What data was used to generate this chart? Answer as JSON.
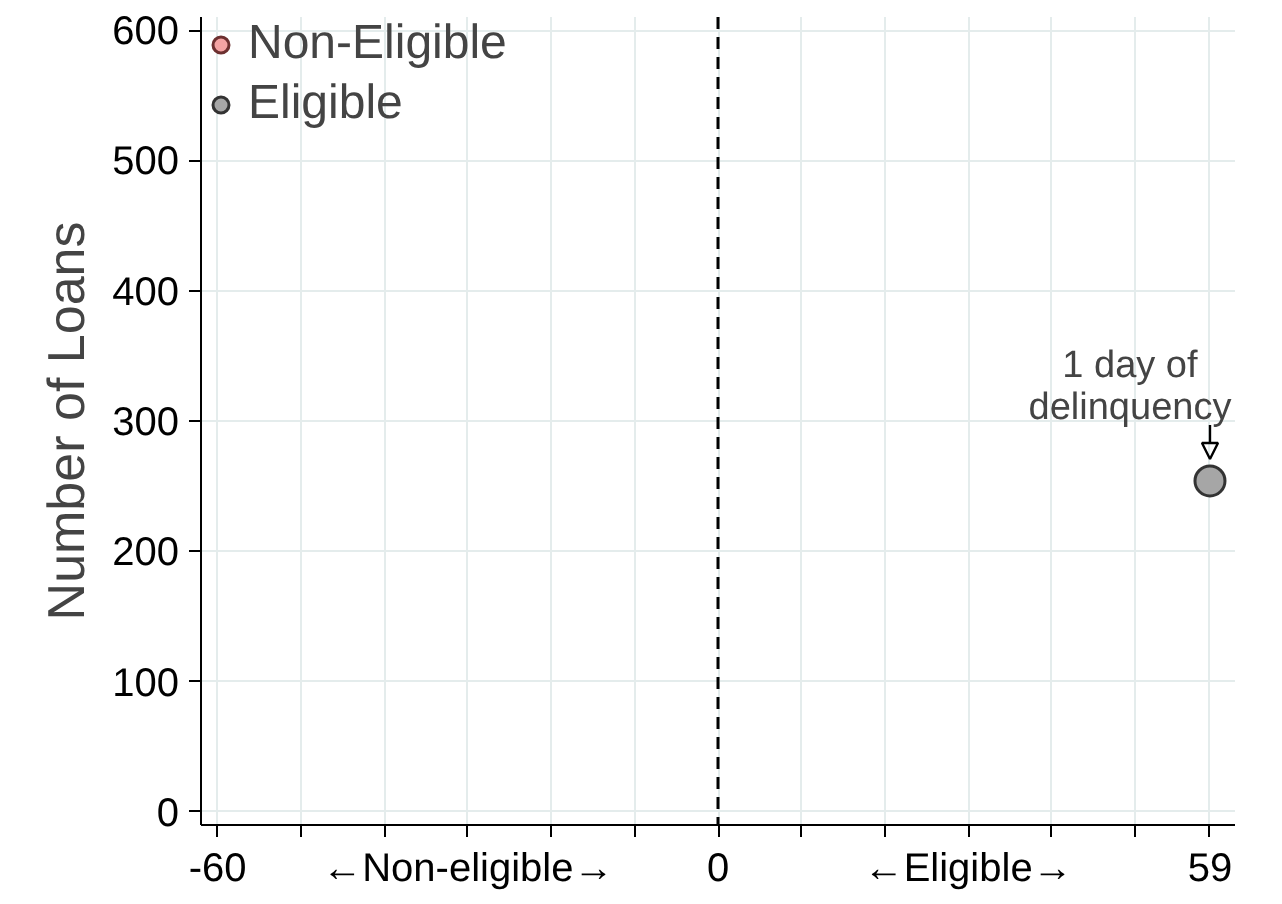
{
  "chart_data": {
    "type": "scatter",
    "ylabel": "Number of Loans",
    "xlim": [
      -62,
      62
    ],
    "ylim": [
      -10,
      610
    ],
    "xticks": [
      {
        "value": -60,
        "label": "-60"
      },
      {
        "value": -50,
        "label": null
      },
      {
        "value": -40,
        "label": null
      },
      {
        "value": -30,
        "label": "←Non-eligible→"
      },
      {
        "value": -20,
        "label": null
      },
      {
        "value": -10,
        "label": null
      },
      {
        "value": 0,
        "label": "0"
      },
      {
        "value": 10,
        "label": null
      },
      {
        "value": 20,
        "label": null
      },
      {
        "value": 30,
        "label": "←Eligible→"
      },
      {
        "value": 40,
        "label": null
      },
      {
        "value": 50,
        "label": null
      },
      {
        "value": 59,
        "label": "59"
      }
    ],
    "yticks": [
      0,
      100,
      200,
      300,
      400,
      500,
      600
    ],
    "series": [
      {
        "name": "Non-Eligible",
        "color": "#f4a3a3",
        "x": [
          null
        ],
        "values": [
          null
        ]
      },
      {
        "name": "Eligible",
        "color": "#a6a6a6",
        "x": [
          59
        ],
        "values": [
          254
        ]
      }
    ],
    "ref_lines": [
      {
        "axis": "x",
        "value": 0,
        "label": null,
        "color": "#000000",
        "line_style": "dashed"
      }
    ],
    "annotations": [
      {
        "text": "1 day of\ndelinquency",
        "x": 59,
        "y": 254
      }
    ],
    "grid": true,
    "legend": "top left",
    "marker": "circle"
  }
}
